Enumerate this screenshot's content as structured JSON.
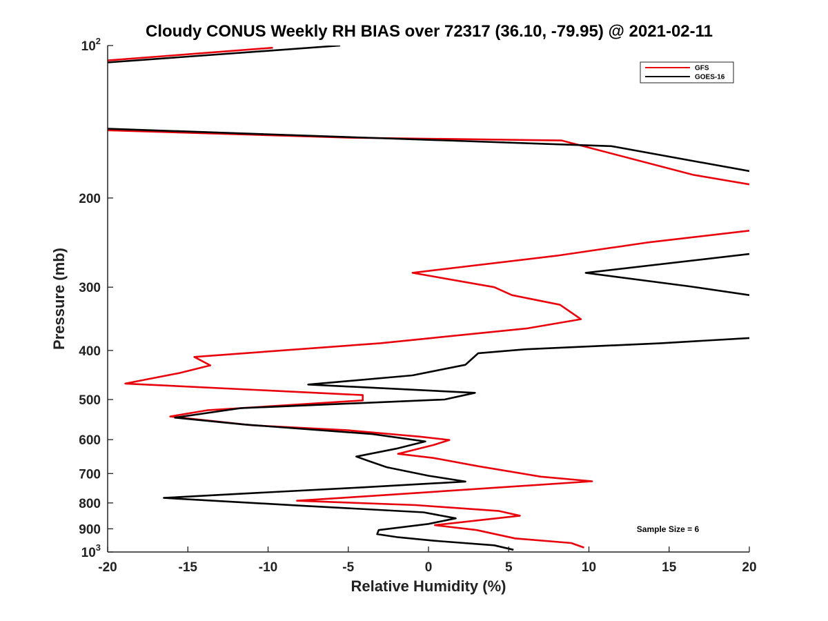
{
  "chart_data": {
    "type": "line",
    "title": "Cloudy CONUS Weekly RH BIAS over 72317 (36.10, -79.95) @ 2021-02-11",
    "xlabel": "Relative Humidity (%)",
    "ylabel": "Pressure (mb)",
    "xlim": [
      -20,
      20
    ],
    "ylim": [
      100,
      1000
    ],
    "y_scale": "log",
    "y_reversed": true,
    "grid": false,
    "legend_position": "top-right",
    "x_ticks": [
      "-20",
      "-15",
      "-10",
      "-5",
      "0",
      "5",
      "10",
      "15",
      "20"
    ],
    "y_ticks": [
      {
        "value": 100,
        "base": "10",
        "exp": "2"
      },
      {
        "value": 200,
        "label": "200"
      },
      {
        "value": 300,
        "label": "300"
      },
      {
        "value": 400,
        "label": "400"
      },
      {
        "value": 500,
        "label": "500"
      },
      {
        "value": 600,
        "label": "600"
      },
      {
        "value": 700,
        "label": "700"
      },
      {
        "value": 800,
        "label": "800"
      },
      {
        "value": 900,
        "label": "900"
      },
      {
        "value": 1000,
        "base": "10",
        "exp": "3"
      }
    ],
    "series": [
      {
        "name": "GFS",
        "color": "#e8000b",
        "points": [
          [
            9.7,
            980
          ],
          [
            8.9,
            960
          ],
          [
            5.4,
            940
          ],
          [
            3.0,
            905
          ],
          [
            0.4,
            885
          ],
          [
            5.7,
            848
          ],
          [
            4.4,
            830
          ],
          [
            -0.8,
            808
          ],
          [
            -8.2,
            792
          ],
          [
            -3.5,
            775
          ],
          [
            10.2,
            725
          ],
          [
            7.0,
            710
          ],
          [
            3.1,
            677
          ],
          [
            0.3,
            652
          ],
          [
            -1.9,
            640
          ],
          [
            0.3,
            615
          ],
          [
            1.3,
            601
          ],
          [
            -0.5,
            592
          ],
          [
            -5.0,
            575
          ],
          [
            -11.0,
            562
          ],
          [
            -16.1,
            540
          ],
          [
            -13.8,
            525
          ],
          [
            -4.1,
            502
          ],
          [
            -4.1,
            490
          ],
          [
            -18.9,
            465
          ],
          [
            -15.5,
            443
          ],
          [
            -13.6,
            428
          ],
          [
            -14.6,
            412
          ],
          [
            -3.0,
            387
          ],
          [
            0.2,
            378
          ],
          [
            6.1,
            362
          ],
          [
            9.5,
            347
          ],
          [
            8.2,
            325
          ],
          [
            5.2,
            311
          ],
          [
            4.1,
            300
          ],
          [
            -1.0,
            281
          ],
          [
            8.0,
            260
          ],
          [
            13.6,
            245
          ],
          [
            20.0,
            232
          ]
        ],
        "segments_top": [
          [
            [
              20.0,
              188
            ],
            [
              16.5,
              180
            ],
            [
              8.3,
              154
            ],
            [
              -5.0,
              152
            ],
            [
              -20.0,
              147
            ]
          ],
          [
            [
              -9.7,
              101
            ],
            [
              -20.0,
              107
            ]
          ]
        ]
      },
      {
        "name": "GOES-16",
        "color": "#000000",
        "points": [
          [
            5.3,
            990
          ],
          [
            4.1,
            970
          ],
          [
            0.3,
            950
          ],
          [
            -1.9,
            935
          ],
          [
            -3.2,
            922
          ],
          [
            -3.1,
            905
          ],
          [
            0.0,
            880
          ],
          [
            1.7,
            858
          ],
          [
            -0.3,
            835
          ],
          [
            -8.0,
            810
          ],
          [
            -16.5,
            782
          ],
          [
            -12.0,
            768
          ],
          [
            -4.0,
            745
          ],
          [
            2.3,
            726
          ],
          [
            0.0,
            707
          ],
          [
            -2.6,
            680
          ],
          [
            -3.8,
            660
          ],
          [
            -4.5,
            648
          ],
          [
            -2.0,
            625
          ],
          [
            -0.2,
            605
          ],
          [
            -3.5,
            585
          ],
          [
            -11.5,
            560
          ],
          [
            -15.8,
            543
          ],
          [
            -11.7,
            520
          ],
          [
            1.0,
            500
          ],
          [
            2.9,
            485
          ],
          [
            -7.5,
            467
          ],
          [
            -1.0,
            448
          ],
          [
            2.3,
            427
          ],
          [
            3.1,
            405
          ],
          [
            6.0,
            398
          ],
          [
            14.5,
            387
          ],
          [
            20.0,
            378
          ]
        ],
        "segments_top": [
          [
            [
              20.0,
              311
            ],
            [
              16.3,
              299
            ],
            [
              9.8,
              281
            ],
            [
              20.0,
              258
            ]
          ],
          [
            [
              20.0,
              177
            ],
            [
              11.4,
              158
            ],
            [
              -20.0,
              146
            ]
          ],
          [
            [
              -5.5,
              100
            ],
            [
              -20.0,
              108
            ]
          ]
        ]
      }
    ],
    "annotations": [
      "Sample Size = 6"
    ]
  }
}
